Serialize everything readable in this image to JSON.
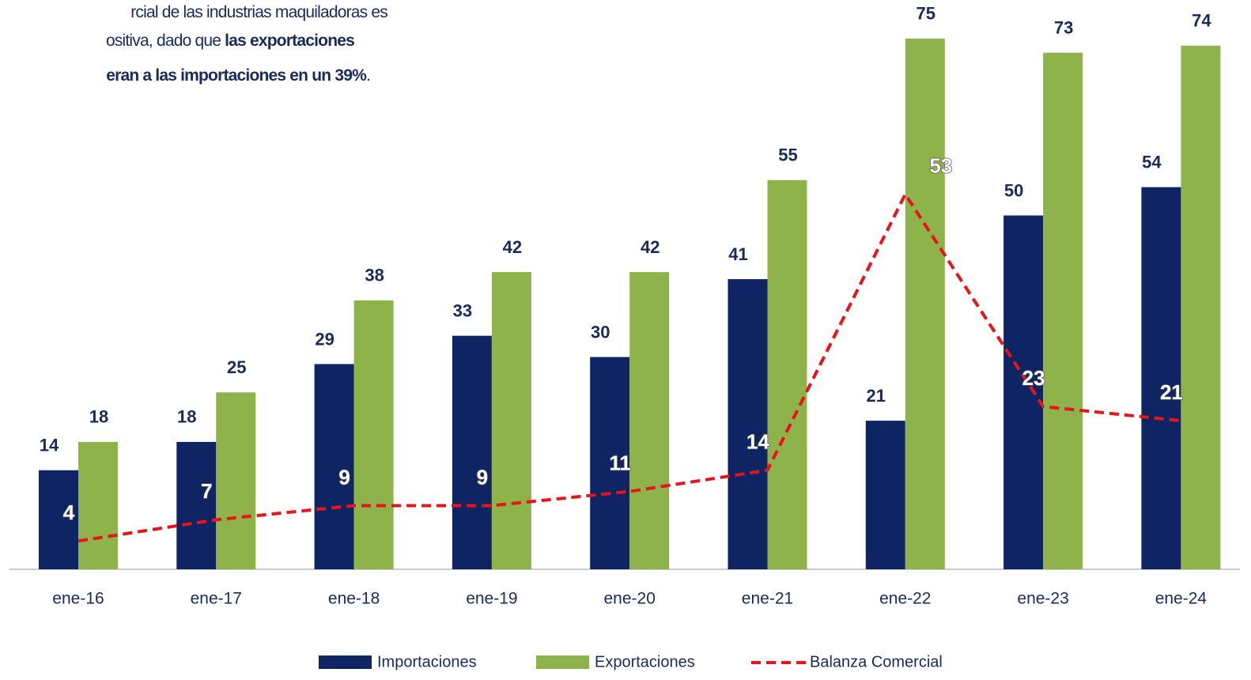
{
  "chart_data": {
    "type": "bar_line",
    "note_lines": [
      [
        {
          "text": "rcial de las industrias maquiladoras es",
          "bold": false
        }
      ],
      [
        {
          "text": "ositiva, dado que ",
          "bold": false
        },
        {
          "text": "las exportaciones",
          "bold": true
        }
      ],
      [
        {
          "text": "eran a las importaciones en un 39%",
          "bold": true
        },
        {
          "text": ".",
          "bold": false
        }
      ]
    ],
    "categories": [
      "ene-16",
      "ene-17",
      "ene-18",
      "ene-19",
      "ene-20",
      "ene-21",
      "ene-22",
      "ene-23",
      "ene-24"
    ],
    "series": [
      {
        "name": "Importaciones",
        "type": "bar",
        "color": "#0f2462",
        "values": [
          14,
          18,
          29,
          33,
          30,
          41,
          21,
          50,
          54
        ]
      },
      {
        "name": "Exportaciones",
        "type": "bar",
        "color": "#8db34a",
        "values": [
          18,
          25,
          38,
          42,
          42,
          55,
          75,
          73,
          74
        ]
      },
      {
        "name": "Balanza Comercial",
        "type": "line",
        "color": "#e8141c",
        "values": [
          4,
          7,
          9,
          9,
          11,
          14,
          53,
          23,
          21
        ]
      }
    ]
  }
}
